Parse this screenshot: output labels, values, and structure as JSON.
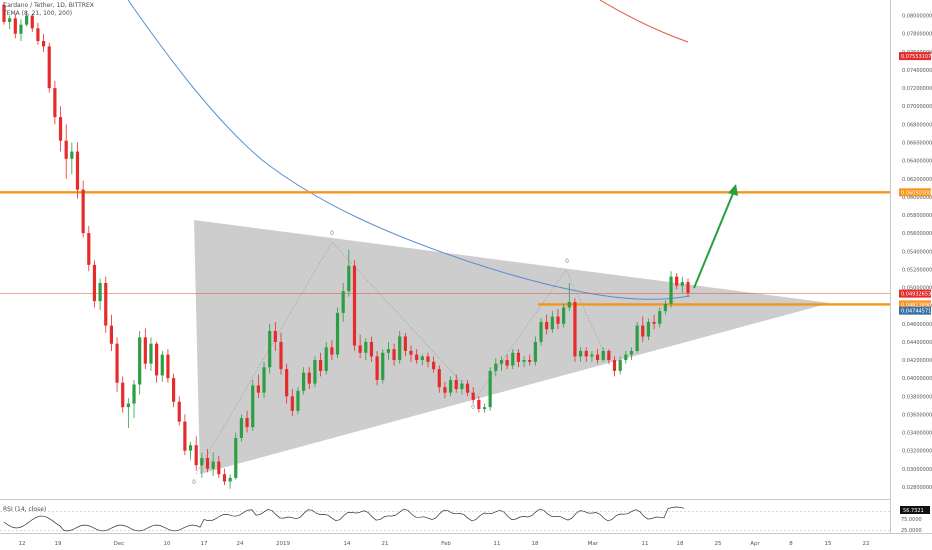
{
  "header": {
    "title": "Cardano / Tether, 1D, BITTREX",
    "indicator": "TEMA (8, 21, 100, 200)"
  },
  "rsi_panel": {
    "label": "RSI (14, close)",
    "value_tag": "56.7321",
    "scale": [
      "75.0000",
      "25.0000"
    ]
  },
  "colors": {
    "up": "#2e9e44",
    "down": "#e52b2b",
    "resistance": "#f7941d",
    "triangle_fill": "#c4c4c4",
    "arrow": "#27a13b",
    "ma_blue": "#5b8fd1",
    "ma_red": "#e5533d",
    "current_line": "#e74c3c"
  },
  "price_tags": [
    {
      "name": "tag-ma-red",
      "value": "0.07553107",
      "color": "#e52b2b"
    },
    {
      "name": "tag-resistance-top",
      "value": "0.06050300",
      "color": "#f7941d"
    },
    {
      "name": "tag-current",
      "value": "0.04932653",
      "color": "#e52b2b"
    },
    {
      "name": "tag-resistance-low",
      "value": "0.04813890",
      "color": "#f7941d"
    },
    {
      "name": "tag-ma-blue",
      "value": "0.04744571",
      "color": "#3c6fa8"
    }
  ],
  "chart_data": {
    "type": "candlestick",
    "title": "Cardano / Tether, 1D, BITTREX",
    "ylim": [
      0.027,
      0.0815
    ],
    "y_ticks": [
      "0.08000000",
      "0.07800000",
      "0.07600000",
      "0.07400000",
      "0.07200000",
      "0.07000000",
      "0.06800000",
      "0.06600000",
      "0.06400000",
      "0.06200000",
      "0.06000000",
      "0.05800000",
      "0.05600000",
      "0.05400000",
      "0.05200000",
      "0.05000000",
      "0.04800000",
      "0.04600000",
      "0.04400000",
      "0.04200000",
      "0.04000000",
      "0.03800000",
      "0.03600000",
      "0.03400000",
      "0.03200000",
      "0.03000000",
      "0.02800000"
    ],
    "x_ticks": [
      "12",
      "19",
      "Dec",
      "10",
      "17",
      "24",
      "2019",
      "14",
      "21",
      "Feb",
      "11",
      "18",
      "Mar",
      "11",
      "18",
      "25",
      "Apr",
      "8",
      "15",
      "22"
    ],
    "candles": [
      [
        0.0812,
        0.0815,
        0.079,
        0.0793
      ],
      [
        0.0793,
        0.08,
        0.0785,
        0.0797
      ],
      [
        0.0797,
        0.0802,
        0.0775,
        0.078
      ],
      [
        0.078,
        0.0796,
        0.0772,
        0.079
      ],
      [
        0.079,
        0.0805,
        0.0788,
        0.08
      ],
      [
        0.08,
        0.0802,
        0.0782,
        0.0786
      ],
      [
        0.0786,
        0.0792,
        0.0768,
        0.0772
      ],
      [
        0.0772,
        0.078,
        0.076,
        0.0766
      ],
      [
        0.0766,
        0.077,
        0.0715,
        0.072
      ],
      [
        0.072,
        0.0728,
        0.068,
        0.0688
      ],
      [
        0.0688,
        0.07,
        0.065,
        0.0662
      ],
      [
        0.0662,
        0.068,
        0.062,
        0.0642
      ],
      [
        0.0642,
        0.066,
        0.0625,
        0.065
      ],
      [
        0.065,
        0.066,
        0.0598,
        0.0608
      ],
      [
        0.0608,
        0.0618,
        0.0555,
        0.056
      ],
      [
        0.056,
        0.0568,
        0.0518,
        0.0525
      ],
      [
        0.0525,
        0.053,
        0.0478,
        0.0485
      ],
      [
        0.0485,
        0.051,
        0.0475,
        0.0505
      ],
      [
        0.0505,
        0.0512,
        0.045,
        0.0458
      ],
      [
        0.0458,
        0.047,
        0.043,
        0.0438
      ],
      [
        0.0438,
        0.0445,
        0.0385,
        0.0395
      ],
      [
        0.0395,
        0.0402,
        0.0362,
        0.0368
      ],
      [
        0.0368,
        0.0378,
        0.0345,
        0.0372
      ],
      [
        0.0372,
        0.0398,
        0.0356,
        0.0393
      ],
      [
        0.0393,
        0.0452,
        0.0382,
        0.0445
      ],
      [
        0.0445,
        0.0455,
        0.041,
        0.0416
      ],
      [
        0.0416,
        0.0445,
        0.0408,
        0.0438
      ],
      [
        0.0438,
        0.044,
        0.0395,
        0.0403
      ],
      [
        0.0403,
        0.043,
        0.0396,
        0.0426
      ],
      [
        0.0426,
        0.0432,
        0.0395,
        0.04
      ],
      [
        0.04,
        0.0405,
        0.0368,
        0.0374
      ],
      [
        0.0374,
        0.038,
        0.0348,
        0.0352
      ],
      [
        0.0352,
        0.036,
        0.0315,
        0.032
      ],
      [
        0.032,
        0.033,
        0.031,
        0.0326
      ],
      [
        0.0326,
        0.0336,
        0.0298,
        0.0304
      ],
      [
        0.0304,
        0.0318,
        0.029,
        0.0312
      ],
      [
        0.0312,
        0.0322,
        0.0296,
        0.03
      ],
      [
        0.03,
        0.0318,
        0.0292,
        0.0308
      ],
      [
        0.0308,
        0.0314,
        0.029,
        0.0294
      ],
      [
        0.0294,
        0.03,
        0.0282,
        0.0286
      ],
      [
        0.0286,
        0.0294,
        0.0278,
        0.029
      ],
      [
        0.029,
        0.034,
        0.0288,
        0.0334
      ],
      [
        0.0334,
        0.036,
        0.033,
        0.0356
      ],
      [
        0.0356,
        0.0364,
        0.034,
        0.0346
      ],
      [
        0.0346,
        0.0398,
        0.0342,
        0.0392
      ],
      [
        0.0392,
        0.0404,
        0.0378,
        0.0384
      ],
      [
        0.0384,
        0.0418,
        0.0378,
        0.0412
      ],
      [
        0.0412,
        0.046,
        0.0405,
        0.0452
      ],
      [
        0.0452,
        0.0462,
        0.043,
        0.044
      ],
      [
        0.044,
        0.045,
        0.0404,
        0.041
      ],
      [
        0.041,
        0.0416,
        0.0372,
        0.038
      ],
      [
        0.038,
        0.0388,
        0.0358,
        0.0364
      ],
      [
        0.0364,
        0.039,
        0.036,
        0.0386
      ],
      [
        0.0386,
        0.0412,
        0.0382,
        0.0406
      ],
      [
        0.0406,
        0.0412,
        0.0388,
        0.0394
      ],
      [
        0.0394,
        0.0424,
        0.039,
        0.042
      ],
      [
        0.042,
        0.0428,
        0.0402,
        0.0408
      ],
      [
        0.0408,
        0.044,
        0.0404,
        0.0434
      ],
      [
        0.0434,
        0.0442,
        0.042,
        0.0426
      ],
      [
        0.0426,
        0.0478,
        0.0422,
        0.0472
      ],
      [
        0.0472,
        0.0505,
        0.0462,
        0.0496
      ],
      [
        0.0496,
        0.0542,
        0.049,
        0.0524
      ],
      [
        0.0524,
        0.053,
        0.043,
        0.0436
      ],
      [
        0.0436,
        0.0448,
        0.0422,
        0.0428
      ],
      [
        0.0428,
        0.0444,
        0.042,
        0.044
      ],
      [
        0.044,
        0.0446,
        0.0418,
        0.0424
      ],
      [
        0.0424,
        0.043,
        0.0392,
        0.0398
      ],
      [
        0.0398,
        0.0432,
        0.0394,
        0.0428
      ],
      [
        0.0428,
        0.044,
        0.042,
        0.0432
      ],
      [
        0.0432,
        0.0438,
        0.0414,
        0.042
      ],
      [
        0.042,
        0.0452,
        0.0416,
        0.0446
      ],
      [
        0.0446,
        0.045,
        0.0424,
        0.043
      ],
      [
        0.043,
        0.0436,
        0.0418,
        0.0426
      ],
      [
        0.0426,
        0.0432,
        0.0416,
        0.042
      ],
      [
        0.042,
        0.0426,
        0.0414,
        0.0424
      ],
      [
        0.0424,
        0.0428,
        0.0412,
        0.0418
      ],
      [
        0.0418,
        0.0424,
        0.0406,
        0.041
      ],
      [
        0.041,
        0.0414,
        0.0384,
        0.039
      ],
      [
        0.039,
        0.0396,
        0.0378,
        0.0384
      ],
      [
        0.0384,
        0.0402,
        0.038,
        0.0398
      ],
      [
        0.0398,
        0.0404,
        0.0384,
        0.0388
      ],
      [
        0.0388,
        0.0398,
        0.0382,
        0.0394
      ],
      [
        0.0394,
        0.0398,
        0.038,
        0.0384
      ],
      [
        0.0384,
        0.039,
        0.0372,
        0.0376
      ],
      [
        0.0376,
        0.038,
        0.0362,
        0.0366
      ],
      [
        0.0366,
        0.0372,
        0.0362,
        0.0368
      ],
      [
        0.0368,
        0.0412,
        0.0364,
        0.0408
      ],
      [
        0.0408,
        0.0422,
        0.0402,
        0.0416
      ],
      [
        0.0416,
        0.0424,
        0.0408,
        0.042
      ],
      [
        0.042,
        0.0426,
        0.041,
        0.0414
      ],
      [
        0.0414,
        0.0432,
        0.041,
        0.0428
      ],
      [
        0.0428,
        0.0432,
        0.0412,
        0.0418
      ],
      [
        0.0418,
        0.0424,
        0.0412,
        0.042
      ],
      [
        0.042,
        0.0426,
        0.0414,
        0.0418
      ],
      [
        0.0418,
        0.0446,
        0.0414,
        0.044
      ],
      [
        0.044,
        0.0466,
        0.0436,
        0.0462
      ],
      [
        0.0462,
        0.047,
        0.0448,
        0.0454
      ],
      [
        0.0454,
        0.0474,
        0.045,
        0.0468
      ],
      [
        0.0468,
        0.0476,
        0.0454,
        0.046
      ],
      [
        0.046,
        0.0482,
        0.0456,
        0.0478
      ],
      [
        0.0478,
        0.0505,
        0.0474,
        0.0484
      ],
      [
        0.0484,
        0.0488,
        0.0418,
        0.0424
      ],
      [
        0.0424,
        0.0434,
        0.0418,
        0.043
      ],
      [
        0.043,
        0.0434,
        0.0418,
        0.0424
      ],
      [
        0.0424,
        0.043,
        0.0418,
        0.0426
      ],
      [
        0.0426,
        0.0432,
        0.0416,
        0.042
      ],
      [
        0.042,
        0.0434,
        0.0418,
        0.043
      ],
      [
        0.043,
        0.0432,
        0.0416,
        0.042
      ],
      [
        0.042,
        0.0424,
        0.0402,
        0.0408
      ],
      [
        0.0408,
        0.0424,
        0.0404,
        0.042
      ],
      [
        0.042,
        0.043,
        0.0416,
        0.0426
      ],
      [
        0.0426,
        0.0434,
        0.042,
        0.043
      ],
      [
        0.043,
        0.0462,
        0.0428,
        0.0458
      ],
      [
        0.0458,
        0.0468,
        0.044,
        0.0446
      ],
      [
        0.0446,
        0.0466,
        0.0442,
        0.0462
      ],
      [
        0.0462,
        0.047,
        0.0454,
        0.046
      ],
      [
        0.046,
        0.0478,
        0.0456,
        0.0474
      ],
      [
        0.0474,
        0.0486,
        0.047,
        0.0482
      ],
      [
        0.0482,
        0.0518,
        0.0478,
        0.0512
      ],
      [
        0.0512,
        0.0516,
        0.0498,
        0.0502
      ],
      [
        0.0502,
        0.0512,
        0.0494,
        0.0506
      ],
      [
        0.0506,
        0.051,
        0.049,
        0.0494
      ]
    ]
  }
}
